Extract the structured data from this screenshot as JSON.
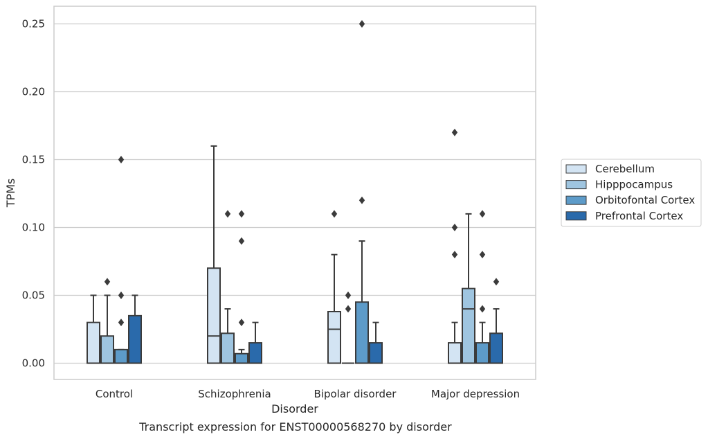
{
  "caption": "Transcript expression for ENST00000568270 by disorder",
  "chart_data": {
    "type": "box",
    "xlabel": "Disorder",
    "ylabel": "TPMs",
    "categories": [
      "Control",
      "Schizophrenia",
      "Bipolar disorder",
      "Major depression"
    ],
    "ylim": [
      -0.012,
      0.263
    ],
    "yticks": [
      0.0,
      0.05,
      0.1,
      0.15,
      0.2,
      0.25
    ],
    "ytick_labels": [
      "0.00",
      "0.05",
      "0.10",
      "0.15",
      "0.20",
      "0.25"
    ],
    "grid": "horizontal",
    "legend": {
      "placement": "right"
    },
    "series": [
      {
        "name": "Cerebellum",
        "color": "#d3e4f3",
        "boxes": [
          {
            "whisker_low": 0.0,
            "q1": 0.0,
            "median": 0.0,
            "q3": 0.03,
            "whisker_high": 0.05,
            "outliers": []
          },
          {
            "whisker_low": 0.0,
            "q1": 0.0,
            "median": 0.02,
            "q3": 0.07,
            "whisker_high": 0.16,
            "outliers": []
          },
          {
            "whisker_low": 0.0,
            "q1": 0.0,
            "median": 0.025,
            "q3": 0.038,
            "whisker_high": 0.08,
            "outliers": [
              0.11
            ]
          },
          {
            "whisker_low": 0.0,
            "q1": 0.0,
            "median": 0.0,
            "q3": 0.015,
            "whisker_high": 0.03,
            "outliers": [
              0.08,
              0.1,
              0.17
            ]
          }
        ]
      },
      {
        "name": "Hipppocampus",
        "color": "#9fc5e0",
        "boxes": [
          {
            "whisker_low": 0.0,
            "q1": 0.0,
            "median": 0.0,
            "q3": 0.02,
            "whisker_high": 0.05,
            "outliers": [
              0.06
            ]
          },
          {
            "whisker_low": 0.0,
            "q1": 0.0,
            "median": 0.0,
            "q3": 0.022,
            "whisker_high": 0.04,
            "outliers": [
              0.11
            ]
          },
          {
            "whisker_low": 0.0,
            "q1": 0.0,
            "median": 0.0,
            "q3": 0.0,
            "whisker_high": 0.0,
            "outliers": [
              0.04,
              0.05
            ]
          },
          {
            "whisker_low": 0.0,
            "q1": 0.0,
            "median": 0.04,
            "q3": 0.055,
            "whisker_high": 0.11,
            "outliers": []
          }
        ]
      },
      {
        "name": "Orbitofontal Cortex",
        "color": "#5d9bc9",
        "boxes": [
          {
            "whisker_low": 0.0,
            "q1": 0.0,
            "median": 0.0,
            "q3": 0.01,
            "whisker_high": 0.01,
            "outliers": [
              0.03,
              0.05,
              0.15
            ]
          },
          {
            "whisker_low": 0.0,
            "q1": 0.0,
            "median": 0.0,
            "q3": 0.007,
            "whisker_high": 0.01,
            "outliers": [
              0.03,
              0.09,
              0.11
            ]
          },
          {
            "whisker_low": 0.0,
            "q1": 0.0,
            "median": 0.0,
            "q3": 0.045,
            "whisker_high": 0.09,
            "outliers": [
              0.12,
              0.25
            ]
          },
          {
            "whisker_low": 0.0,
            "q1": 0.0,
            "median": 0.0,
            "q3": 0.015,
            "whisker_high": 0.03,
            "outliers": [
              0.04,
              0.08,
              0.11
            ]
          }
        ]
      },
      {
        "name": "Prefrontal Cortex",
        "color": "#2a6aab",
        "boxes": [
          {
            "whisker_low": 0.0,
            "q1": 0.0,
            "median": 0.0,
            "q3": 0.035,
            "whisker_high": 0.05,
            "outliers": []
          },
          {
            "whisker_low": 0.0,
            "q1": 0.0,
            "median": 0.0,
            "q3": 0.015,
            "whisker_high": 0.03,
            "outliers": []
          },
          {
            "whisker_low": 0.0,
            "q1": 0.0,
            "median": 0.0,
            "q3": 0.015,
            "whisker_high": 0.03,
            "outliers": []
          },
          {
            "whisker_low": 0.0,
            "q1": 0.0,
            "median": 0.0,
            "q3": 0.022,
            "whisker_high": 0.04,
            "outliers": [
              0.06
            ]
          }
        ]
      }
    ]
  }
}
